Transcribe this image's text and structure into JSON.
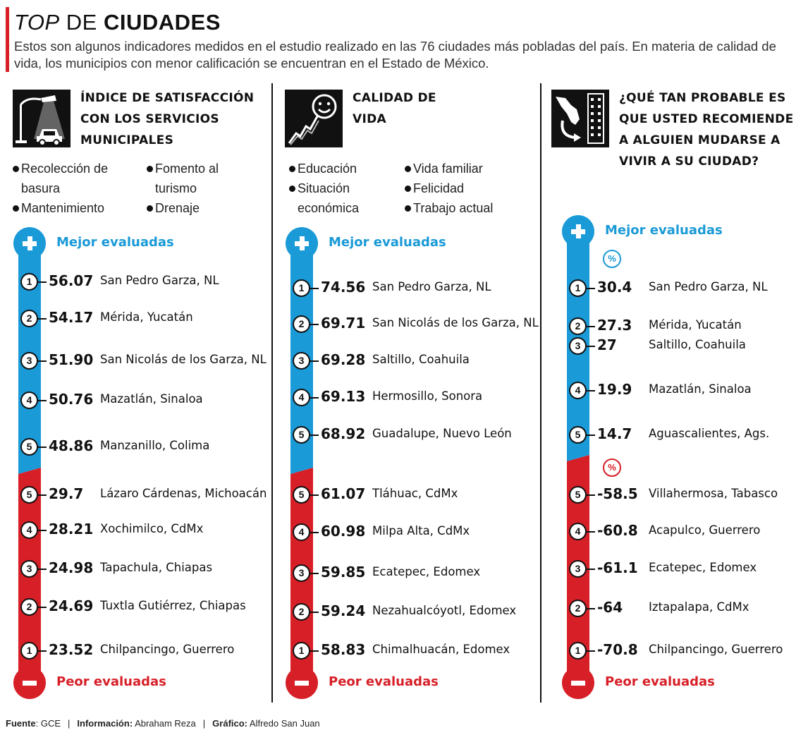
{
  "header": {
    "title_italic": "TOP",
    "title_middle": " DE ",
    "title_bold": "CIUDADES",
    "subtitle": "Estos son algunos indicadores medidos en el estudio realizado en las 76 ciudades más pobladas del país. En materia de calidad de vida, los municipios con menor calificación se encuentran en el Estado de México."
  },
  "colors": {
    "best": "#1a9ad7",
    "worst": "#d71f27",
    "accent": "#d71f27"
  },
  "labels": {
    "best": "Mejor evaluadas",
    "worst": "Peor evaluadas",
    "percent": "%"
  },
  "chart_data": [
    {
      "type": "table",
      "title": "ÍNDICE DE SATISFACCIÓN CON LOS SERVICIOS MUNICIPALES",
      "icon": "streetlight-car-icon",
      "bullets": [
        "Recolección de basura",
        "Fomento al turismo",
        "Mantenimiento",
        "Drenaje"
      ],
      "best": [
        {
          "rank": "1",
          "value": "56.07",
          "city": "San Pedro Garza, NL"
        },
        {
          "rank": "2",
          "value": "54.17",
          "city": "Mérida, Yucatán"
        },
        {
          "rank": "3",
          "value": "51.90",
          "city": "San Nicolás de los Garza, NL"
        },
        {
          "rank": "4",
          "value": "50.76",
          "city": "Mazatlán, Sinaloa"
        },
        {
          "rank": "5",
          "value": "48.86",
          "city": "Manzanillo, Colima"
        }
      ],
      "worst": [
        {
          "rank": "5",
          "value": "29.7",
          "city": "Lázaro Cárdenas, Michoacán"
        },
        {
          "rank": "4",
          "value": "28.21",
          "city": "Xochimilco, CdMx"
        },
        {
          "rank": "3",
          "value": "24.98",
          "city": "Tapachula, Chiapas"
        },
        {
          "rank": "2",
          "value": "24.69",
          "city": "Tuxtla Gutiérrez, Chiapas"
        },
        {
          "rank": "1",
          "value": "23.52",
          "city": "Chilpancingo, Guerrero"
        }
      ]
    },
    {
      "type": "table",
      "title": "CALIDAD DE VIDA",
      "icon": "smiley-growth-icon",
      "bullets": [
        "Educación",
        "Vida familiar",
        "Situación económica",
        "Felicidad",
        "Trabajo actual"
      ],
      "best": [
        {
          "rank": "1",
          "value": "74.56",
          "city": "San Pedro Garza, NL"
        },
        {
          "rank": "2",
          "value": "69.71",
          "city": "San Nicolás de los Garza, NL"
        },
        {
          "rank": "3",
          "value": "69.28",
          "city": "Saltillo, Coahuila"
        },
        {
          "rank": "4",
          "value": "69.13",
          "city": "Hermosillo, Sonora"
        },
        {
          "rank": "5",
          "value": "68.92",
          "city": "Guadalupe,  Nuevo León"
        }
      ],
      "worst": [
        {
          "rank": "5",
          "value": "61.07",
          "city": "Tláhuac, CdMx"
        },
        {
          "rank": "4",
          "value": "60.98",
          "city": "Milpa Alta, CdMx"
        },
        {
          "rank": "3",
          "value": "59.85",
          "city": "Ecatepec, Edomex"
        },
        {
          "rank": "2",
          "value": "59.24",
          "city": "Nezahualcóyotl, Edomex"
        },
        {
          "rank": "1",
          "value": "58.83",
          "city": "Chimalhuacán, Edomex"
        }
      ]
    },
    {
      "type": "table",
      "title": "¿QUÉ TAN PROBABLE ES QUE USTED RECOMIENDE A ALGUIEN MUDARSE A VIVIR A SU CIUDAD?",
      "icon": "mexico-map-building-icon",
      "unit": "%",
      "best": [
        {
          "rank": "1",
          "value": "30.4",
          "city": "San Pedro Garza, NL"
        },
        {
          "rank": "2",
          "value": "27.3",
          "city": "Mérida, Yucatán"
        },
        {
          "rank": "3",
          "value": "27",
          "city": "Saltillo, Coahuila"
        },
        {
          "rank": "4",
          "value": "19.9",
          "city": "Mazatlán, Sinaloa"
        },
        {
          "rank": "5",
          "value": "14.7",
          "city": "Aguascalientes, Ags."
        }
      ],
      "worst": [
        {
          "rank": "5",
          "value": "-58.5",
          "city": "Villahermosa, Tabasco"
        },
        {
          "rank": "4",
          "value": "-60.8",
          "city": "Acapulco, Guerrero"
        },
        {
          "rank": "3",
          "value": "-61.1",
          "city": "Ecatepec, Edomex"
        },
        {
          "rank": "2",
          "value": "-64",
          "city": "Iztapalapa, CdMx"
        },
        {
          "rank": "1",
          "value": "-70.8",
          "city": "Chilpancingo, Guerrero"
        }
      ]
    }
  ],
  "footer": {
    "fuente_label": "Fuente",
    "fuente": "GCE",
    "info_label": "Información:",
    "info": "Abraham Reza",
    "grafico_label": "Gráfico:",
    "grafico": "Alfredo San Juan",
    "separator": "|"
  }
}
